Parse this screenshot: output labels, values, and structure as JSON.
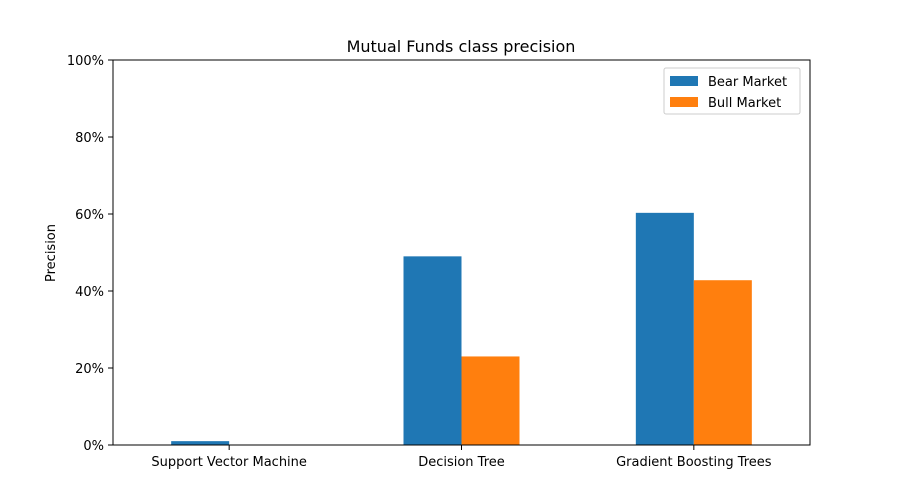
{
  "chart_data": {
    "type": "bar",
    "title": "Mutual Funds class precision",
    "xlabel": "",
    "ylabel": "Precision",
    "categories": [
      "Support Vector Machine",
      "Decision Tree",
      "Gradient Boosting Trees"
    ],
    "series": [
      {
        "name": "Bear Market",
        "values": [
          1.0,
          49.0,
          60.3
        ],
        "color": "#1f77b4"
      },
      {
        "name": "Bull Market",
        "values": [
          0.0,
          23.0,
          42.8
        ],
        "color": "#ff7f0e"
      }
    ],
    "ylim": [
      0,
      100
    ],
    "y_ticks": [
      "0%",
      "20%",
      "40%",
      "60%",
      "80%",
      "100%"
    ],
    "y_tick_values": [
      0,
      20,
      40,
      60,
      80,
      100
    ],
    "legend_position": "top-right",
    "grid": false
  }
}
